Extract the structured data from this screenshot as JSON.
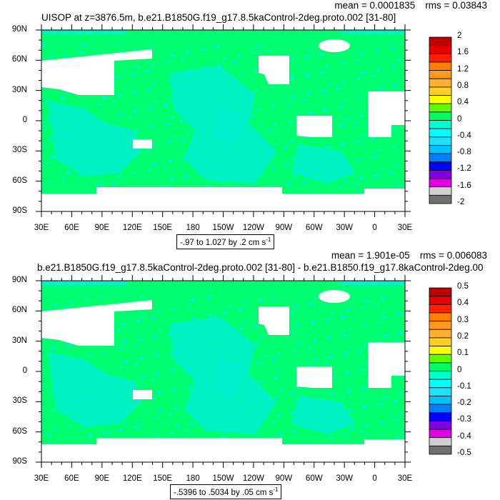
{
  "colors": {
    "ocean_main": "#00ff70",
    "ocean_neg": "#00f0d0",
    "land": "#ffffff",
    "frame": "#000000"
  },
  "colormap": [
    "#c00000",
    "#e80000",
    "#ff2000",
    "#ff8000",
    "#ff9a20",
    "#ffb030",
    "#ffd020",
    "#ffff00",
    "#60ff00",
    "#00ff60",
    "#00ffd0",
    "#00ffff",
    "#20e0ff",
    "#00c0ff",
    "#0080ff",
    "#0000ff",
    "#8000e0",
    "#e000e0",
    "#d0d0d0",
    "#707070"
  ],
  "panels": [
    {
      "title": "UISOP at z=3876.5m, b.e21.B1850G.f19_g17.8.5kaControl-2deg.proto.002 [31-80]",
      "mean": "mean = 0.0001835",
      "rms": "rms = 0.03843",
      "range_label": "-.97 to 1.027 by .2 cm s",
      "range_sup": "-1",
      "colorbar_labels": [
        "2",
        "1.6",
        "1.2",
        "0.8",
        "0.4",
        "0",
        "-0.4",
        "-0.8",
        "-1.2",
        "-1.6",
        "-2"
      ]
    },
    {
      "title": "b.e21.B1850G.f19_g17.8.5kaControl-2deg.proto.002 [31-80] - b.e21.B1850.f19_g17.8kaControl-2deg.00",
      "mean": "mean = 1.901e-05",
      "rms": "rms = 0.006083",
      "range_label": "-.5396 to .5034 by .05 cm s",
      "range_sup": "-1",
      "colorbar_labels": [
        "0.5",
        "0.4",
        "0.3",
        "0.2",
        "0.1",
        "0",
        "-0.1",
        "-0.2",
        "-0.3",
        "-0.4",
        "-0.5"
      ]
    }
  ],
  "lat_labels": [
    "90N",
    "60N",
    "30N",
    "0",
    "30S",
    "60S",
    "90S"
  ],
  "lon_labels": [
    "30E",
    "60E",
    "90E",
    "120E",
    "150E",
    "180",
    "150W",
    "120W",
    "90W",
    "60W",
    "30W",
    "0",
    "30E"
  ]
}
